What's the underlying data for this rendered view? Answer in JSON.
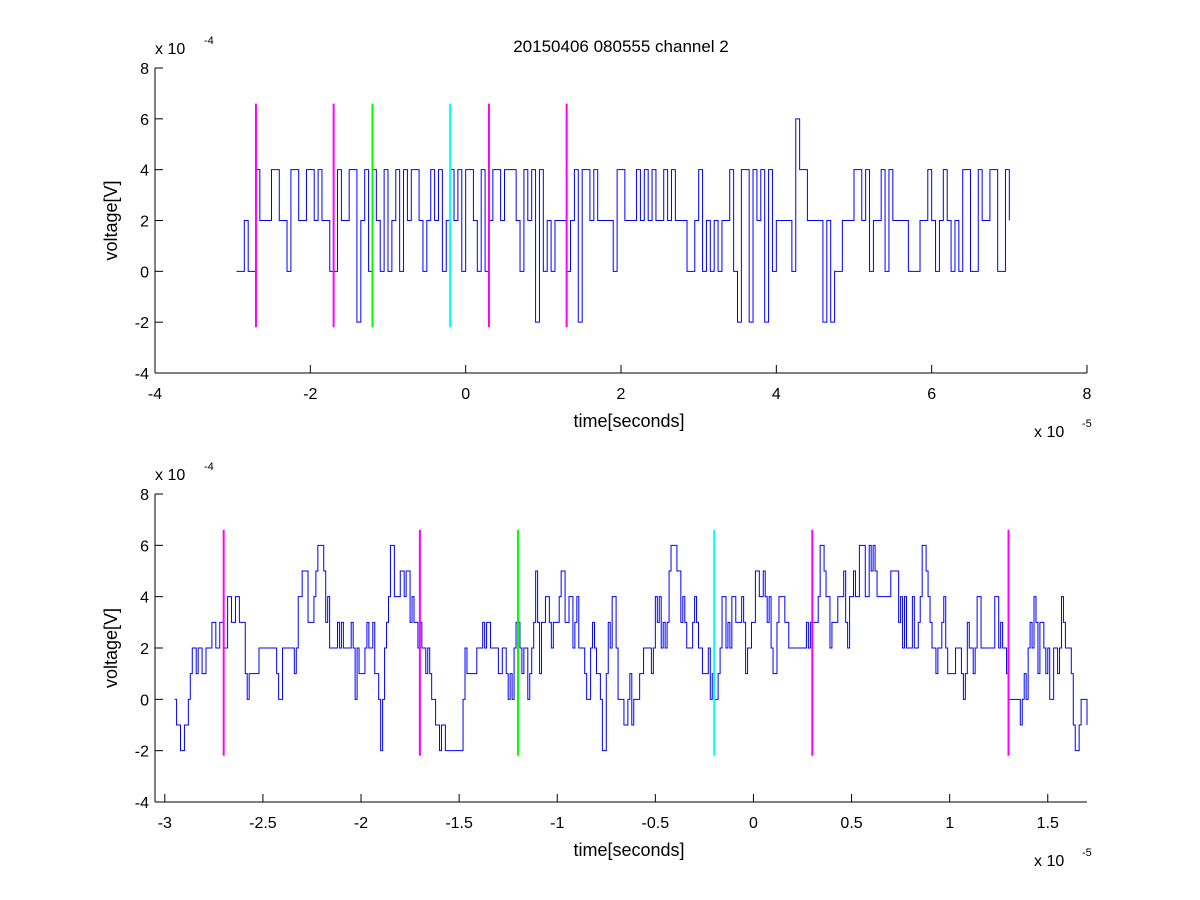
{
  "chart_data": [
    {
      "type": "line",
      "title": "20150406 080555 channel 2",
      "xlabel": "time[seconds]",
      "ylabel": "voltage[V]",
      "x_exponent": {
        "base": "x 10",
        "power": "-5"
      },
      "y_exponent": {
        "base": "x 10",
        "power": "-4"
      },
      "xlim": [
        -4,
        8
      ],
      "ylim": [
        -4,
        8
      ],
      "x_ticks": [
        "-4",
        "-2",
        "0",
        "2",
        "4",
        "6",
        "8"
      ],
      "x_tick_values": [
        -4,
        -2,
        0,
        2,
        4,
        6,
        8
      ],
      "y_ticks": [
        "-4",
        "-2",
        "0",
        "2",
        "4",
        "6",
        "8"
      ],
      "y_tick_values": [
        -4,
        -2,
        0,
        2,
        4,
        6,
        8
      ],
      "grid": false,
      "signal": {
        "color": "#0000ff",
        "x_range": [
          -2.95,
          7.0
        ],
        "step": 0.05,
        "levels": [
          -2,
          0,
          2,
          4,
          6
        ],
        "seed": 17
      },
      "markers": [
        {
          "x": -2.7,
          "color": "#ff00ff",
          "ymin": -2.2,
          "ymax": 6.6
        },
        {
          "x": -1.7,
          "color": "#ff00ff",
          "ymin": -2.2,
          "ymax": 6.6
        },
        {
          "x": -1.2,
          "color": "#00ff00",
          "ymin": -2.2,
          "ymax": 6.6
        },
        {
          "x": -0.2,
          "color": "#00ffff",
          "ymin": -2.2,
          "ymax": 6.6
        },
        {
          "x": 0.3,
          "color": "#ff00ff",
          "ymin": -2.2,
          "ymax": 6.6
        },
        {
          "x": 1.3,
          "color": "#ff00ff",
          "ymin": -2.2,
          "ymax": 6.6
        }
      ]
    },
    {
      "type": "line",
      "title": "",
      "xlabel": "time[seconds]",
      "ylabel": "voltage[V]",
      "x_exponent": {
        "base": "x 10",
        "power": "-5"
      },
      "y_exponent": {
        "base": "x 10",
        "power": "-4"
      },
      "xlim": [
        -3.05,
        1.7
      ],
      "ylim": [
        -4,
        8
      ],
      "x_ticks": [
        "-3",
        "-2.5",
        "-2",
        "-1.5",
        "-1",
        "-0.5",
        "0",
        "0.5",
        "1",
        "1.5"
      ],
      "x_tick_values": [
        -3,
        -2.5,
        -2,
        -1.5,
        -1,
        -0.5,
        0,
        0.5,
        1,
        1.5
      ],
      "y_ticks": [
        "-4",
        "-2",
        "0",
        "2",
        "4",
        "6",
        "8"
      ],
      "y_tick_values": [
        -4,
        -2,
        0,
        2,
        4,
        6,
        8
      ],
      "grid": false,
      "signal": {
        "color": "#0000ff",
        "x_range": [
          -2.95,
          1.7
        ],
        "step": 0.01,
        "levels": [
          -2,
          -1,
          0,
          1,
          2,
          3,
          4,
          5,
          6
        ],
        "seed": 42
      },
      "markers": [
        {
          "x": -2.7,
          "color": "#ff00ff",
          "ymin": -2.2,
          "ymax": 6.6
        },
        {
          "x": -1.7,
          "color": "#ff00ff",
          "ymin": -2.2,
          "ymax": 6.6
        },
        {
          "x": -1.2,
          "color": "#00ff00",
          "ymin": -2.2,
          "ymax": 6.6
        },
        {
          "x": -0.2,
          "color": "#00ffff",
          "ymin": -2.2,
          "ymax": 6.6
        },
        {
          "x": 0.3,
          "color": "#ff00ff",
          "ymin": -2.2,
          "ymax": 6.6
        },
        {
          "x": 1.3,
          "color": "#ff00ff",
          "ymin": -2.2,
          "ymax": 6.6
        }
      ]
    }
  ]
}
